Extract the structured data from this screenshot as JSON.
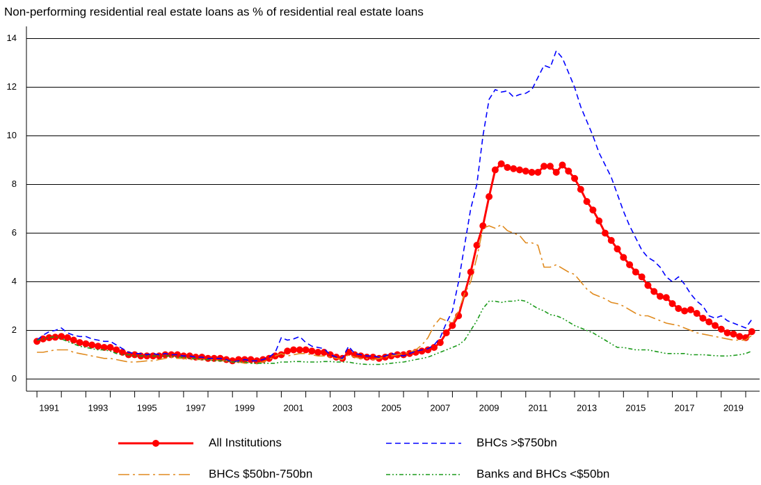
{
  "chart_data": {
    "type": "line",
    "title": "Non-performing residential real estate loans as % of residential real estate loans",
    "x": [
      1991,
      1991.25,
      1991.5,
      1991.75,
      1992,
      1992.25,
      1992.5,
      1992.75,
      1993,
      1993.25,
      1993.5,
      1993.75,
      1994,
      1994.25,
      1994.5,
      1994.75,
      1995,
      1995.25,
      1995.5,
      1995.75,
      1996,
      1996.25,
      1996.5,
      1996.75,
      1997,
      1997.25,
      1997.5,
      1997.75,
      1998,
      1998.25,
      1998.5,
      1998.75,
      1999,
      1999.25,
      1999.5,
      1999.75,
      2000,
      2000.25,
      2000.5,
      2000.75,
      2001,
      2001.25,
      2001.5,
      2001.75,
      2002,
      2002.25,
      2002.5,
      2002.75,
      2003,
      2003.25,
      2003.5,
      2003.75,
      2004,
      2004.25,
      2004.5,
      2004.75,
      2005,
      2005.25,
      2005.5,
      2005.75,
      2006,
      2006.25,
      2006.5,
      2006.75,
      2007,
      2007.25,
      2007.5,
      2007.75,
      2008,
      2008.25,
      2008.5,
      2008.75,
      2009,
      2009.25,
      2009.5,
      2009.75,
      2010,
      2010.25,
      2010.5,
      2010.75,
      2011,
      2011.25,
      2011.5,
      2011.75,
      2012,
      2012.25,
      2012.5,
      2012.75,
      2013,
      2013.25,
      2013.5,
      2013.75,
      2014,
      2014.25,
      2014.5,
      2014.75,
      2015,
      2015.25,
      2015.5,
      2015.75,
      2016,
      2016.25,
      2016.5,
      2016.75,
      2017,
      2017.25,
      2017.5,
      2017.75,
      2018,
      2018.25,
      2018.5,
      2018.75,
      2019,
      2019.25,
      2019.5,
      2019.75,
      2020,
      2020.25
    ],
    "series": [
      {
        "name": "All Institutions",
        "color": "#ff0000",
        "style": "solid",
        "marker": true,
        "values": [
          1.55,
          1.65,
          1.7,
          1.72,
          1.75,
          1.7,
          1.6,
          1.5,
          1.45,
          1.4,
          1.35,
          1.3,
          1.3,
          1.2,
          1.1,
          1.0,
          1.0,
          0.95,
          0.95,
          0.95,
          0.95,
          1.0,
          1.0,
          1.0,
          0.95,
          0.95,
          0.9,
          0.9,
          0.85,
          0.85,
          0.85,
          0.8,
          0.75,
          0.8,
          0.8,
          0.8,
          0.75,
          0.8,
          0.85,
          0.95,
          1.0,
          1.15,
          1.2,
          1.2,
          1.2,
          1.15,
          1.1,
          1.1,
          1.0,
          0.9,
          0.85,
          1.1,
          1.0,
          0.95,
          0.9,
          0.9,
          0.85,
          0.9,
          0.95,
          1.0,
          1.0,
          1.05,
          1.1,
          1.15,
          1.2,
          1.3,
          1.5,
          1.9,
          2.2,
          2.6,
          3.5,
          4.4,
          5.5,
          6.3,
          7.5,
          8.6,
          8.85,
          8.7,
          8.65,
          8.6,
          8.55,
          8.5,
          8.5,
          8.75,
          8.75,
          8.5,
          8.8,
          8.55,
          8.25,
          7.8,
          7.3,
          6.95,
          6.5,
          6.0,
          5.7,
          5.35,
          5.0,
          4.7,
          4.4,
          4.2,
          3.85,
          3.6,
          3.4,
          3.35,
          3.1,
          2.9,
          2.8,
          2.85,
          2.7,
          2.5,
          2.35,
          2.2,
          2.05,
          1.9,
          1.85,
          1.75,
          1.7,
          1.95
        ]
      },
      {
        "name": "BHCs >$750bn",
        "color": "#0000ff",
        "style": "dashed",
        "marker": false,
        "values": [
          1.6,
          1.8,
          1.95,
          2.0,
          2.1,
          1.9,
          1.8,
          1.75,
          1.75,
          1.65,
          1.6,
          1.55,
          1.55,
          1.4,
          1.25,
          1.1,
          1.05,
          1.05,
          1.0,
          1.05,
          1.0,
          1.05,
          1.0,
          1.0,
          0.95,
          0.95,
          0.9,
          0.9,
          0.85,
          0.85,
          0.85,
          0.8,
          0.7,
          0.75,
          0.8,
          0.75,
          0.75,
          0.8,
          0.9,
          1.1,
          1.7,
          1.6,
          1.65,
          1.75,
          1.5,
          1.35,
          1.3,
          1.25,
          1.0,
          0.9,
          0.85,
          1.35,
          1.05,
          1.0,
          0.95,
          0.95,
          0.9,
          0.95,
          1.05,
          1.0,
          0.95,
          1.05,
          1.15,
          1.2,
          1.25,
          1.4,
          1.7,
          2.3,
          2.8,
          4.0,
          5.5,
          7.0,
          8.0,
          10.0,
          11.5,
          11.9,
          11.8,
          11.85,
          11.6,
          11.7,
          11.75,
          11.9,
          12.4,
          12.9,
          12.8,
          13.5,
          13.2,
          12.6,
          12.0,
          11.2,
          10.6,
          10.0,
          9.3,
          8.8,
          8.3,
          7.6,
          6.9,
          6.3,
          5.8,
          5.3,
          5.0,
          4.85,
          4.6,
          4.2,
          4.0,
          4.2,
          3.9,
          3.5,
          3.2,
          3.0,
          2.6,
          2.5,
          2.6,
          2.4,
          2.3,
          2.2,
          2.1,
          2.45
        ]
      },
      {
        "name": "BHCs $50bn-750bn",
        "color": "#e08a1e",
        "style": "dash-dot",
        "marker": false,
        "values": [
          1.1,
          1.1,
          1.15,
          1.2,
          1.2,
          1.2,
          1.1,
          1.05,
          1.0,
          0.95,
          0.9,
          0.85,
          0.85,
          0.8,
          0.75,
          0.7,
          0.7,
          0.72,
          0.75,
          0.75,
          0.8,
          0.85,
          0.9,
          0.85,
          0.85,
          0.8,
          0.8,
          0.8,
          0.8,
          0.8,
          0.75,
          0.75,
          0.7,
          0.7,
          0.65,
          0.65,
          0.65,
          0.7,
          0.8,
          0.95,
          1.05,
          0.95,
          1.0,
          1.05,
          1.05,
          1.0,
          0.95,
          0.95,
          0.9,
          0.85,
          0.8,
          1.0,
          0.9,
          0.85,
          0.85,
          0.8,
          0.85,
          0.9,
          0.95,
          1.0,
          1.05,
          1.1,
          1.2,
          1.4,
          1.7,
          2.2,
          2.5,
          2.4,
          2.3,
          2.8,
          3.5,
          4.0,
          5.0,
          6.2,
          6.3,
          6.2,
          6.35,
          6.1,
          6.0,
          5.9,
          5.6,
          5.6,
          5.5,
          4.6,
          4.6,
          4.7,
          4.55,
          4.4,
          4.3,
          4.0,
          3.7,
          3.5,
          3.4,
          3.3,
          3.15,
          3.1,
          3.0,
          2.85,
          2.7,
          2.6,
          2.6,
          2.5,
          2.4,
          2.3,
          2.25,
          2.2,
          2.1,
          2.0,
          1.9,
          1.85,
          1.8,
          1.75,
          1.7,
          1.65,
          1.6,
          1.6,
          1.6,
          1.8
        ]
      },
      {
        "name": "Banks and BHCs <$50bn",
        "color": "#1a9a1a",
        "style": "dash-dot-dot",
        "marker": false,
        "values": [
          1.6,
          1.65,
          1.7,
          1.75,
          1.65,
          1.55,
          1.45,
          1.35,
          1.3,
          1.25,
          1.2,
          1.2,
          1.15,
          1.05,
          1.0,
          1.0,
          0.95,
          0.95,
          0.95,
          0.95,
          0.95,
          0.95,
          0.95,
          0.9,
          0.9,
          0.85,
          0.85,
          0.8,
          0.8,
          0.75,
          0.75,
          0.75,
          0.7,
          0.7,
          0.7,
          0.65,
          0.65,
          0.65,
          0.65,
          0.65,
          0.7,
          0.7,
          0.72,
          0.72,
          0.7,
          0.7,
          0.7,
          0.72,
          0.72,
          0.7,
          0.7,
          0.7,
          0.65,
          0.62,
          0.6,
          0.6,
          0.6,
          0.62,
          0.65,
          0.68,
          0.7,
          0.75,
          0.8,
          0.85,
          0.9,
          1.0,
          1.1,
          1.2,
          1.3,
          1.4,
          1.6,
          2.0,
          2.4,
          2.9,
          3.2,
          3.2,
          3.15,
          3.2,
          3.2,
          3.25,
          3.2,
          3.05,
          2.9,
          2.8,
          2.65,
          2.6,
          2.5,
          2.35,
          2.2,
          2.1,
          2.0,
          1.9,
          1.75,
          1.6,
          1.45,
          1.3,
          1.3,
          1.25,
          1.2,
          1.2,
          1.2,
          1.15,
          1.1,
          1.05,
          1.05,
          1.05,
          1.05,
          1.0,
          1.0,
          1.0,
          0.98,
          0.96,
          0.95,
          0.95,
          0.97,
          1.0,
          1.05,
          1.15
        ]
      }
    ],
    "xlim": [
      1990.57,
      2020.57
    ],
    "xticks": [
      {
        "value": 1991.5,
        "label": "1991"
      },
      {
        "value": 1993.5,
        "label": "1993"
      },
      {
        "value": 1995.5,
        "label": "1995"
      },
      {
        "value": 1997.5,
        "label": "1997"
      },
      {
        "value": 1999.5,
        "label": "1999"
      },
      {
        "value": 2001.5,
        "label": "2001"
      },
      {
        "value": 2003.5,
        "label": "2003"
      },
      {
        "value": 2005.5,
        "label": "2005"
      },
      {
        "value": 2007.5,
        "label": "2007"
      },
      {
        "value": 2009.5,
        "label": "2009"
      },
      {
        "value": 2011.5,
        "label": "2011"
      },
      {
        "value": 2013.5,
        "label": "2013"
      },
      {
        "value": 2015.5,
        "label": "2015"
      },
      {
        "value": 2017.5,
        "label": "2017"
      },
      {
        "value": 2019.5,
        "label": "2019"
      }
    ],
    "ylim": [
      -0.5,
      14.5
    ],
    "yticks": [
      0,
      2,
      4,
      6,
      8,
      10,
      12,
      14
    ],
    "grid": true,
    "legend": "bottom"
  }
}
